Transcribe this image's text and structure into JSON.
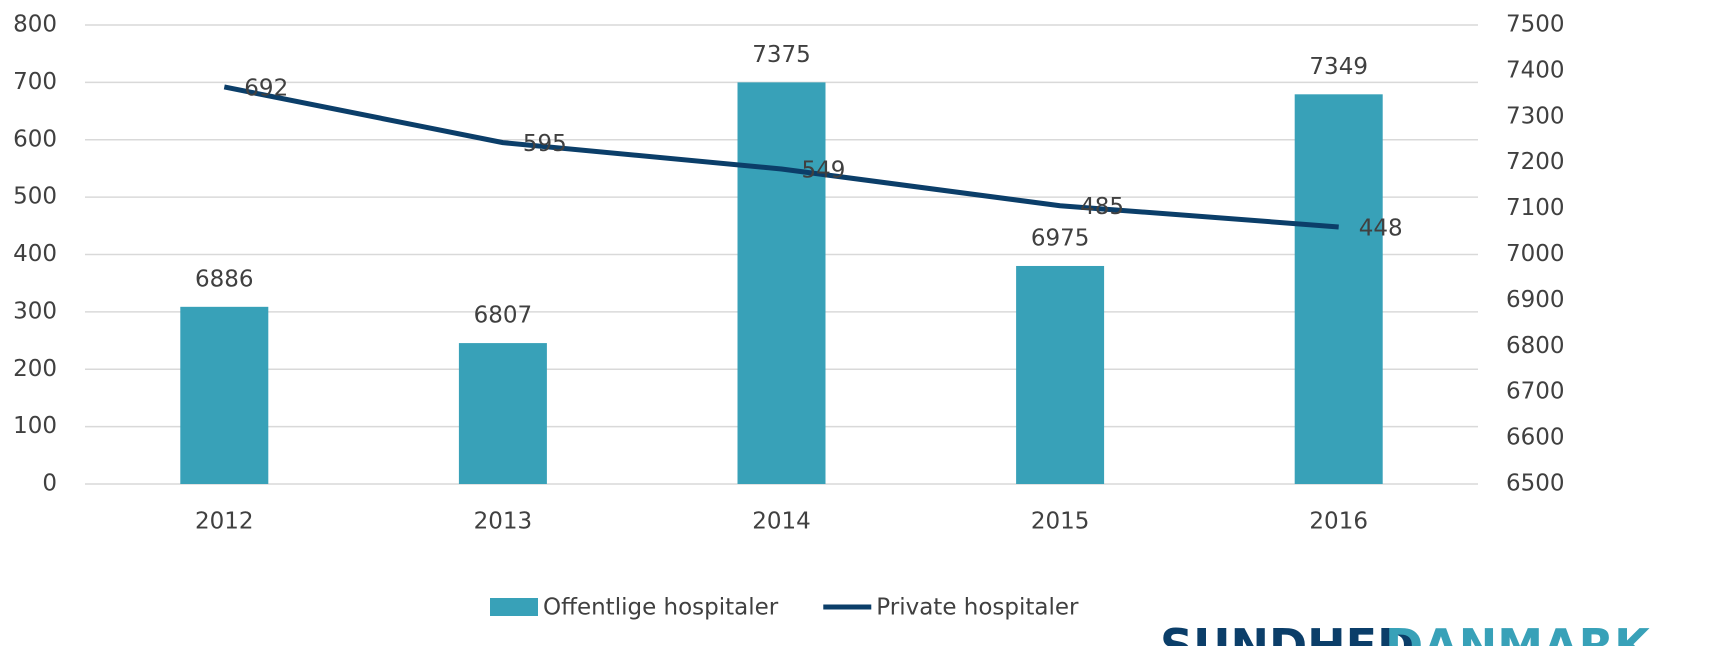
{
  "chart_data": {
    "type": "bar-line",
    "categories": [
      "2012",
      "2013",
      "2014",
      "2015",
      "2016"
    ],
    "series": [
      {
        "name": "Offentlige hospitaler",
        "type": "bar",
        "color": "#38a1b8",
        "axis": "y2",
        "values": [
          6886,
          6807,
          7375,
          6975,
          7349
        ]
      },
      {
        "name": "Private hospitaler",
        "type": "line",
        "color": "#0b3e69",
        "axis": "y",
        "values": [
          692,
          595,
          549,
          485,
          448
        ]
      }
    ],
    "ylim": [
      0,
      800
    ],
    "yticks": [
      0,
      100,
      200,
      300,
      400,
      500,
      600,
      700,
      800
    ],
    "y2lim": [
      6500,
      7500
    ],
    "y2ticks": [
      6500,
      6600,
      6700,
      6800,
      6900,
      7000,
      7100,
      7200,
      7300,
      7400,
      7500
    ],
    "grid": true,
    "legend": "bottom",
    "logo": [
      "SUNDHED",
      "DANMARK"
    ]
  }
}
